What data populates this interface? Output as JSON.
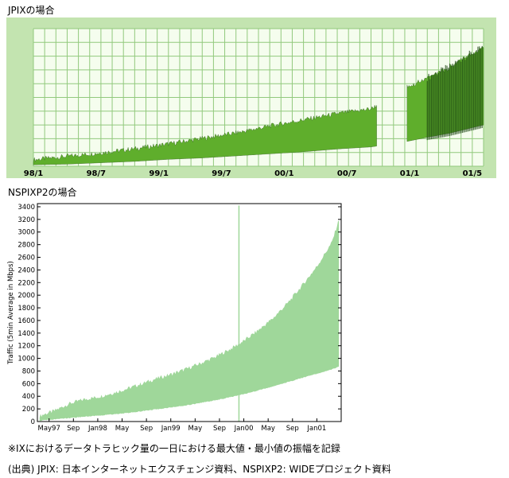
{
  "captions": {
    "jpix_heading": "JPIXの場合",
    "nsp_heading": "NSPIXP2の場合",
    "note": "※IXにおけるデータトラヒック量の一日における最大値・最小値の振幅を記録",
    "source": "(出典) JPIX: 日本インターネットエクスチェンジ資料、NSPIXP2: WIDEプロジェクト資料"
  },
  "colors": {
    "jpix_bg": "#c3e4b0",
    "jpix_plot_bg": "#f5fdee",
    "jpix_grid": "#92c97d",
    "jpix_fill": "#5fae2c",
    "jpix_fill_dark": "#1c4512",
    "nsp_fill": "#9fd79a",
    "nsp_axis": "#000000"
  },
  "chart_data": [
    {
      "type": "area",
      "title": "",
      "xlabel": "",
      "ylabel": "",
      "x_ticks": [
        "98/1",
        "98/7",
        "99/1",
        "99/7",
        "00/1",
        "00/7",
        "01/1",
        "01/5"
      ],
      "x_range": [
        0,
        40
      ],
      "y_range": [
        0,
        10
      ],
      "grid": true,
      "gap_range": [
        30.5,
        33.2
      ],
      "series": [
        {
          "x": [
            0,
            3,
            6,
            9,
            12,
            15,
            18,
            21,
            24,
            27,
            30,
            33.2,
            35,
            37,
            38.5,
            40
          ],
          "max": [
            0.3,
            0.55,
            0.8,
            1.1,
            1.45,
            1.85,
            2.25,
            2.75,
            3.2,
            3.65,
            4.0,
            5.6,
            6.2,
            7.0,
            7.8,
            8.4
          ],
          "min": [
            0.1,
            0.15,
            0.25,
            0.35,
            0.5,
            0.6,
            0.75,
            0.9,
            1.05,
            1.25,
            1.4,
            1.8,
            2.1,
            2.4,
            2.7,
            3.0
          ]
        }
      ]
    },
    {
      "type": "area",
      "title": "",
      "xlabel": "",
      "ylabel": "Traffic (5min Average in Mbps)",
      "x_ticks": [
        "May97",
        "Sep",
        "Jan98",
        "May",
        "Sep",
        "Jan99",
        "May",
        "Sep",
        "Jan00",
        "May",
        "Sep",
        "Jan01"
      ],
      "y_ticks": [
        0,
        200,
        400,
        600,
        800,
        1000,
        1200,
        1400,
        1600,
        1800,
        2000,
        2200,
        2400,
        2600,
        2800,
        3000,
        3200,
        3400
      ],
      "ylim": [
        0,
        3450
      ],
      "grid": false,
      "series": [
        {
          "x": [
            1997.2,
            1997.4,
            1997.6,
            1997.8,
            1998.0,
            1998.2,
            1998.4,
            1998.6,
            1998.8,
            1999.0,
            1999.2,
            1999.4,
            1999.6,
            1999.8,
            2000.0,
            2000.2,
            2000.4,
            2000.6,
            2000.8,
            2001.0,
            2001.2,
            2001.3
          ],
          "max": [
            90,
            170,
            280,
            350,
            390,
            450,
            520,
            600,
            680,
            750,
            830,
            920,
            1020,
            1140,
            1280,
            1450,
            1640,
            1880,
            2160,
            2460,
            2830,
            3200
          ],
          "min": [
            20,
            40,
            60,
            80,
            100,
            120,
            140,
            170,
            200,
            230,
            260,
            300,
            340,
            390,
            440,
            500,
            560,
            630,
            700,
            760,
            830,
            880
          ]
        }
      ],
      "annotations": [
        {
          "x": 1999.93,
          "value": 3420,
          "text": ""
        }
      ]
    }
  ]
}
